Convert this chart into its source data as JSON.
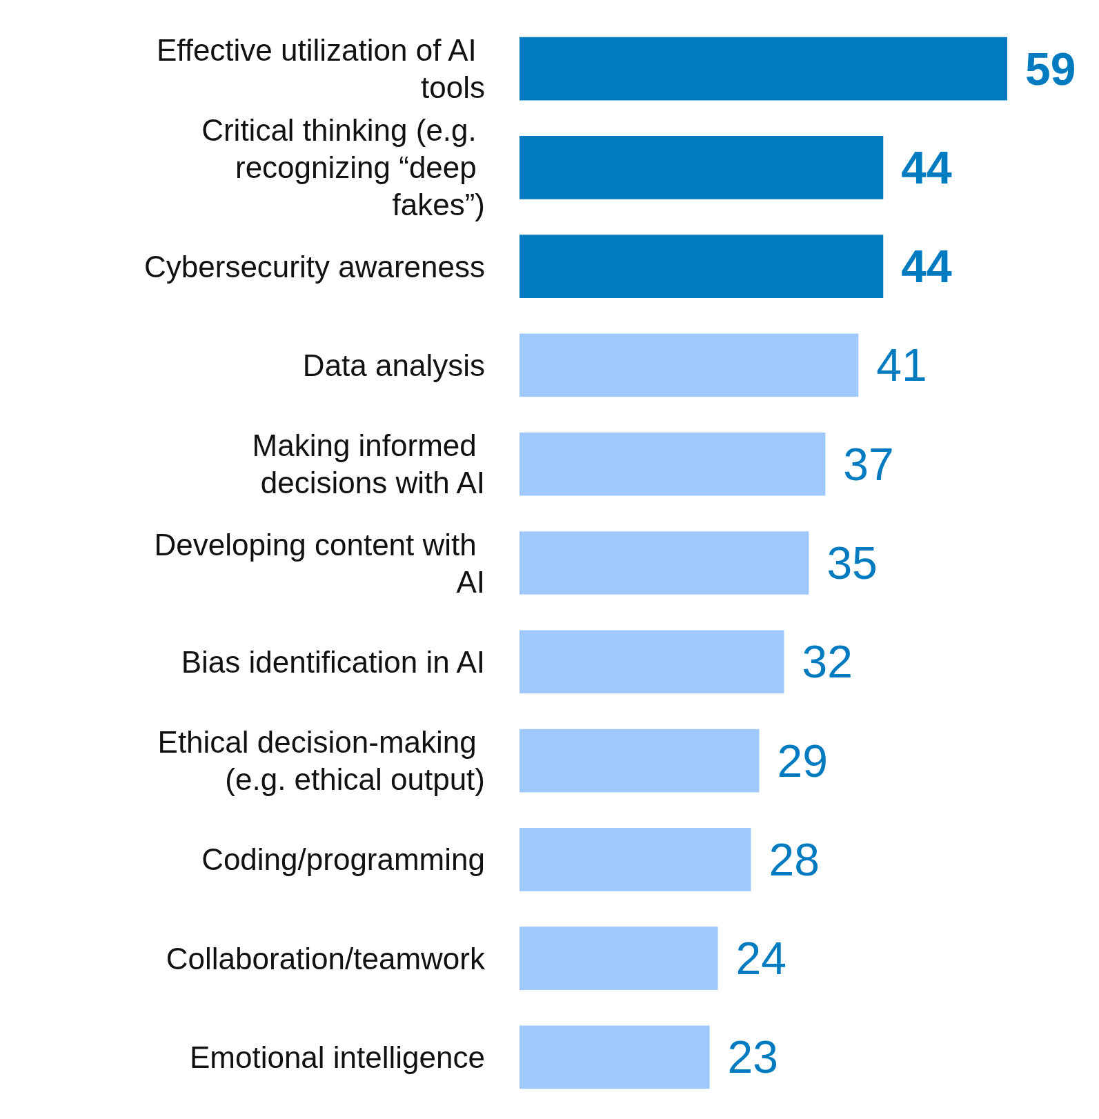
{
  "chart_data": {
    "type": "bar",
    "orientation": "horizontal",
    "categories": [
      "Effective utilization of AI tools",
      "Critical thinking (e.g. recognizing “deep fakes”)",
      "Cybersecurity awareness",
      "Data analysis",
      "Making informed decisions with AI",
      "Developing content with AI",
      "Bias identification in AI",
      "Ethical decision-making (e.g. ethical output)",
      "Coding/programming",
      "Collaboration/teamwork",
      "Emotional intelligence"
    ],
    "values": [
      59,
      44,
      44,
      41,
      37,
      35,
      32,
      29,
      28,
      24,
      23
    ],
    "colors": [
      "#007bc0",
      "#007bc0",
      "#007bc0",
      "#9fc9fc",
      "#9fc9fc",
      "#9fc9fc",
      "#9fc9fc",
      "#9fc9fc",
      "#9fc9fc",
      "#9fc9fc",
      "#9fc9fc"
    ],
    "data_labels": true
  }
}
